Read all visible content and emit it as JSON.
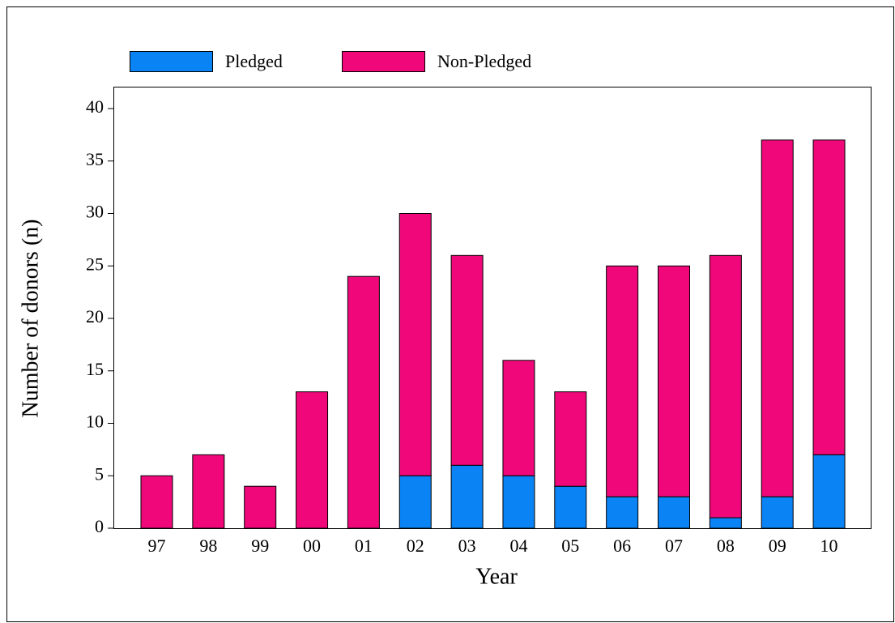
{
  "chart_data": {
    "type": "stacked-bar",
    "x_label": "Year",
    "y_label": "Number of donors (n)",
    "categories": [
      "97",
      "98",
      "99",
      "00",
      "01",
      "02",
      "03",
      "04",
      "05",
      "06",
      "07",
      "08",
      "09",
      "10"
    ],
    "series": [
      {
        "name": "Pledged",
        "color": "#0a84f5",
        "values": [
          0,
          0,
          0,
          0,
          0,
          5,
          6,
          5,
          4,
          3,
          3,
          1,
          3,
          7
        ]
      },
      {
        "name": "Non-Pledged",
        "color": "#f0087a",
        "values": [
          5,
          7,
          4,
          13,
          24,
          25,
          20,
          11,
          9,
          22,
          22,
          25,
          34,
          30
        ]
      }
    ],
    "ylim": [
      0,
      40
    ],
    "yticks": [
      0,
      5,
      10,
      15,
      20,
      25,
      30,
      35,
      40
    ],
    "legend": "top"
  }
}
